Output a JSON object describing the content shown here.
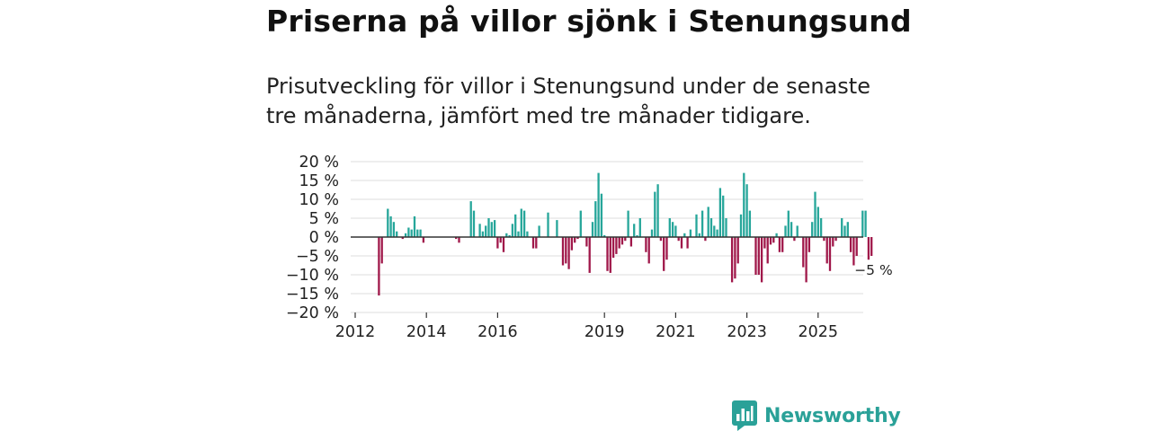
{
  "header": {
    "title": "Priserna på villor sjönk i Stenungsund",
    "subtitle": "Prisutveckling för villor i Stenungsund under de senaste tre månaderna, jämfört med tre månader tidigare."
  },
  "chart_data": {
    "type": "bar",
    "title": "Priserna på villor sjönk i Stenungsund",
    "xlabel": "",
    "ylabel": "",
    "ylim": [
      -20,
      20
    ],
    "yticks": [
      20,
      15,
      10,
      5,
      0,
      -5,
      -10,
      -15,
      -20
    ],
    "ytick_labels": [
      "20 %",
      "15 %",
      "10 %",
      "5 %",
      "0 %",
      "−5 %",
      "−10 %",
      "−15 %",
      "−20 %"
    ],
    "xticks": [
      {
        "label": "2012",
        "month_index": 0
      },
      {
        "label": "2014",
        "month_index": 24
      },
      {
        "label": "2016",
        "month_index": 48
      },
      {
        "label": "2019",
        "month_index": 84
      },
      {
        "label": "2021",
        "month_index": 108
      },
      {
        "label": "2023",
        "month_index": 132
      },
      {
        "label": "2025",
        "month_index": 156
      }
    ],
    "positive_color": "#26a69a",
    "negative_color": "#a0184a",
    "start": "2012-01",
    "values": [
      null,
      null,
      null,
      null,
      null,
      null,
      null,
      null,
      -15.5,
      -7,
      null,
      7.5,
      5.5,
      4,
      1.5,
      null,
      -0.5,
      1,
      2.5,
      2,
      5.5,
      2,
      2,
      -1.5,
      null,
      null,
      null,
      null,
      null,
      null,
      null,
      null,
      null,
      null,
      -0.5,
      -1.5,
      null,
      null,
      null,
      9.5,
      7,
      null,
      3.5,
      1.5,
      3,
      5,
      4,
      4.5,
      -3,
      -1.5,
      -4,
      1,
      0.5,
      3.5,
      6,
      1.5,
      7.5,
      7,
      1.5,
      null,
      -3,
      -3,
      3,
      null,
      null,
      6.5,
      null,
      null,
      4.5,
      null,
      -7.5,
      -7,
      -8.5,
      -3.5,
      -1.5,
      -0.5,
      7,
      null,
      -2.5,
      -9.5,
      4,
      9.5,
      17,
      11.5,
      0.5,
      -9,
      -9.5,
      -5.5,
      -4.5,
      -3,
      -2,
      -1,
      7,
      -2.5,
      3.5,
      0.5,
      5,
      null,
      -4,
      -7,
      2,
      12,
      14,
      -1,
      -9,
      -6,
      5,
      4,
      3,
      -1,
      -3,
      1,
      -3,
      2,
      null,
      6,
      1,
      7,
      -1,
      8,
      5,
      3,
      2,
      13,
      11,
      5,
      null,
      -12,
      -11,
      -7,
      6,
      17,
      14,
      7,
      null,
      -10,
      -10,
      -12,
      -3,
      -7,
      -2,
      -1.5,
      1,
      -4,
      -4,
      3,
      7,
      4,
      -1,
      3,
      null,
      -8,
      -12,
      -4,
      4,
      12,
      8,
      5,
      -1,
      -7,
      -9,
      -2.5,
      -1,
      null,
      5,
      3,
      4,
      -4,
      -7.5,
      -5,
      null,
      7,
      7,
      -6,
      -5,
      null,
      null,
      null,
      null,
      null
    ],
    "annotation": {
      "label": "−5 %",
      "value": -5
    }
  },
  "branding": {
    "name": "Newsworthy",
    "color": "#2aa198",
    "icon": "newsworthy-logo-icon"
  }
}
